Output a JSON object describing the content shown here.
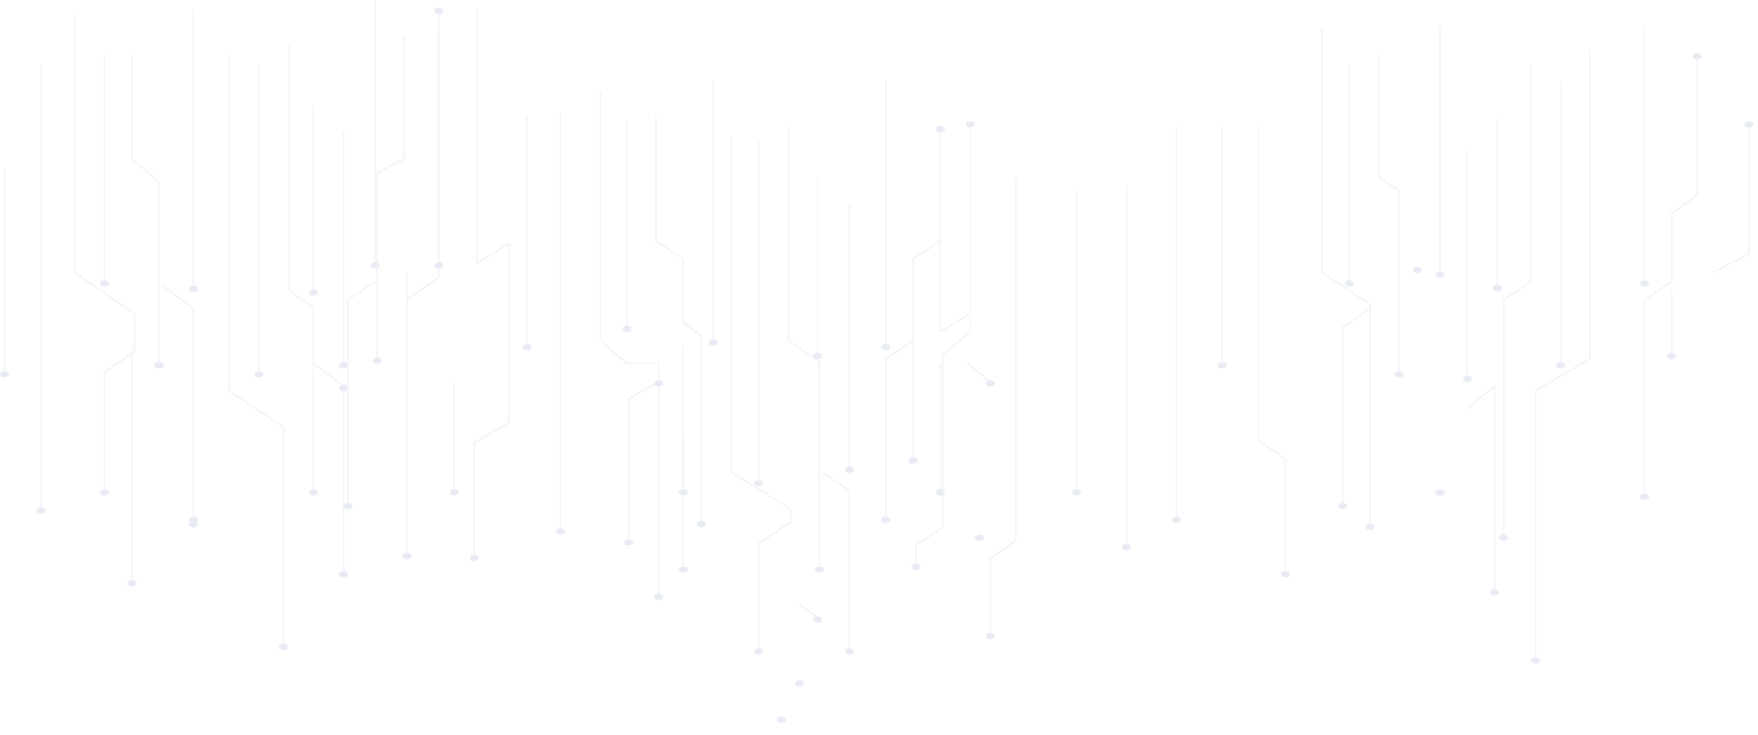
{
  "background": {
    "pattern": "circuit-traces",
    "trace_color": "#eef0f7",
    "node_color": "#e8ebf4",
    "page_color": "#ffffff"
  }
}
